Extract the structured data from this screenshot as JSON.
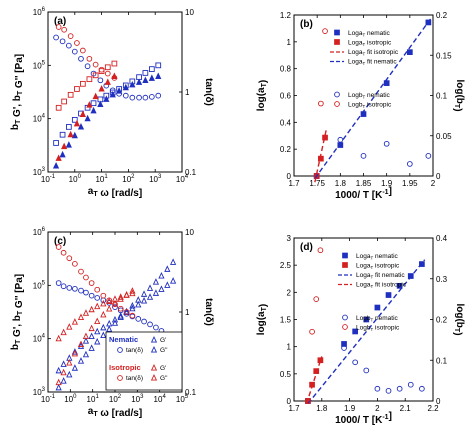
{
  "colors": {
    "blue": "#1f2fbf",
    "red": "#d42020",
    "axis": "#000000"
  },
  "chart_data": [
    {
      "id": "a",
      "type": "scatter",
      "panel_label": "(a)",
      "xlabel": "a_T ω [rad/s]",
      "ylabel": "b_T G', b_T G'' [Pa]",
      "y2label": "tan(δ)",
      "x_scale": "log",
      "y_scale": "log",
      "y2_scale": "log",
      "xlim": [
        0.1,
        10000
      ],
      "ylim": [
        1000,
        1000000
      ],
      "y2lim": [
        0.1,
        10
      ],
      "x_ticks": [
        "10-1",
        "100",
        "101",
        "102",
        "103",
        "104"
      ],
      "y_ticks": [
        "103",
        "104",
        "105",
        "106"
      ],
      "y2_ticks": [
        "0.1",
        "1",
        "10"
      ],
      "series": [
        {
          "color": "blue",
          "marker": "square-open",
          "axis": "y",
          "x": [
            0.2,
            0.35,
            0.6,
            1,
            1.7,
            3,
            5,
            9,
            15,
            26,
            45,
            80,
            140,
            250,
            430,
            750,
            1300
          ],
          "y": [
            3500,
            5000,
            7000,
            9500,
            12500,
            16000,
            19500,
            23000,
            27000,
            31000,
            36000,
            42000,
            50000,
            60000,
            72000,
            85000,
            100000
          ]
        },
        {
          "color": "blue",
          "marker": "triangle-filled",
          "axis": "y",
          "x": [
            0.2,
            0.35,
            0.6,
            1,
            1.7,
            3,
            5,
            9,
            15,
            26,
            45,
            80,
            140,
            250,
            430,
            750,
            1300
          ],
          "y": [
            1300,
            2100,
            3200,
            4800,
            7000,
            10000,
            14000,
            18500,
            23000,
            28000,
            33000,
            38000,
            43000,
            48000,
            52000,
            57000,
            62000
          ]
        },
        {
          "color": "blue",
          "marker": "circle-open",
          "axis": "y2",
          "x": [
            0.2,
            0.35,
            0.6,
            1,
            1.7,
            3,
            5,
            9,
            15,
            26,
            45,
            80,
            140,
            250,
            430,
            750,
            1300
          ],
          "y": [
            4.8,
            4.3,
            3.8,
            3.2,
            2.6,
            2.1,
            1.7,
            1.4,
            1.2,
            1.05,
            0.95,
            0.9,
            0.85,
            0.85,
            0.85,
            0.87,
            0.9
          ]
        },
        {
          "color": "red",
          "marker": "square-open",
          "axis": "y",
          "x": [
            0.25,
            0.4,
            0.7,
            1.2,
            2,
            3.5,
            6,
            10,
            17,
            30
          ],
          "y": [
            16000,
            21000,
            28000,
            36000,
            45000,
            55000,
            65000,
            78000,
            92000,
            108000
          ]
        },
        {
          "color": "red",
          "marker": "triangle-filled",
          "axis": "y",
          "x": [
            0.25,
            0.4,
            0.7,
            1.2,
            2,
            3.5,
            6,
            10,
            17,
            30
          ],
          "y": [
            1800,
            3000,
            5000,
            8000,
            12000,
            18000,
            26000,
            36000,
            48000,
            62000
          ]
        },
        {
          "color": "red",
          "marker": "circle-open",
          "axis": "y2",
          "x": [
            0.25,
            0.4,
            0.7,
            1.2,
            2,
            3.5,
            6,
            10,
            17,
            30
          ],
          "y": [
            6.5,
            6,
            5,
            4.1,
            3.3,
            2.6,
            2.2,
            1.9,
            1.7,
            1.5
          ]
        }
      ]
    },
    {
      "id": "b",
      "type": "scatter",
      "panel_label": "(b)",
      "xlabel": "1000/ T [K-1]",
      "ylabel": "log(a_T)",
      "y2label": "log(b_T)",
      "xlim": [
        1.7,
        2.0
      ],
      "ylim": [
        0,
        1.3
      ],
      "y2lim": [
        0,
        0.2
      ],
      "x_ticks": [
        "1.7",
        "1.75",
        "1.8",
        "1.85",
        "1.9",
        "1.95",
        "2"
      ],
      "y_ticks": [
        "0",
        "0.2",
        "0.4",
        "0.6",
        "0.8",
        "1",
        "1.2"
      ],
      "y2_ticks": [
        "0",
        "0.05",
        "0.1",
        "0.15",
        "0.2"
      ],
      "legend": [
        "Log a_T nematic",
        "Log a_T isotropic",
        "Log a_T fit isotropic",
        "Log a_T fit nematic",
        "Log b_T nematic",
        "Log b_T isotropic"
      ],
      "series": [
        {
          "name": "Log a_T nematic",
          "color": "blue",
          "marker": "square-filled",
          "axis": "y",
          "x": [
            1.749,
            1.8,
            1.85,
            1.9,
            1.95,
            1.99
          ],
          "y": [
            0.0,
            0.25,
            0.5,
            0.75,
            1.0,
            1.24
          ]
        },
        {
          "name": "Log a_T isotropic",
          "color": "red",
          "marker": "square-filled",
          "axis": "y",
          "x": [
            1.749,
            1.758,
            1.767
          ],
          "y": [
            0.0,
            0.14,
            0.31
          ]
        },
        {
          "name": "Log a_T fit isotropic",
          "color": "red",
          "marker": "dash-line",
          "axis": "y",
          "x": [
            1.745,
            1.77
          ],
          "y": [
            -0.05,
            0.38
          ]
        },
        {
          "name": "Log a_T fit nematic",
          "color": "blue",
          "marker": "dash-line",
          "axis": "y",
          "x": [
            1.745,
            1.995
          ],
          "y": [
            -0.02,
            1.27
          ]
        },
        {
          "name": "Log b_T nematic",
          "color": "blue",
          "marker": "circle-open",
          "axis": "y2",
          "x": [
            1.749,
            1.8,
            1.85,
            1.9,
            1.95,
            1.99
          ],
          "y": [
            0.0,
            0.045,
            0.025,
            0.04,
            0.015,
            0.025
          ]
        },
        {
          "name": "Log b_T isotropic",
          "color": "red",
          "marker": "circle-open",
          "axis": "y2",
          "x": [
            1.749,
            1.758,
            1.767
          ],
          "y": [
            0.0,
            0.09,
            0.18
          ]
        }
      ]
    },
    {
      "id": "c",
      "type": "scatter",
      "panel_label": "(c)",
      "xlabel": "a_T ω [rad/s]",
      "ylabel": "b_T G', b_T G'' [Pa]",
      "y2label": "tan(δ)",
      "x_scale": "log",
      "y_scale": "log",
      "y2_scale": "log",
      "xlim": [
        0.1,
        100000
      ],
      "ylim": [
        1000,
        1000000
      ],
      "y2lim": [
        0.1,
        10
      ],
      "x_ticks": [
        "10-1",
        "100",
        "101",
        "102",
        "103",
        "104",
        "105"
      ],
      "y_ticks": [
        "103",
        "104",
        "105",
        "106"
      ],
      "y2_ticks": [
        "0.1",
        "1",
        "10"
      ],
      "legend_groups": [
        {
          "title": "Nematic",
          "color": "blue",
          "items": [
            "tan(δ)",
            "G'",
            "G''"
          ]
        },
        {
          "title": "Isotropic",
          "color": "red",
          "items": [
            "tan(δ)",
            "G'",
            "G''"
          ]
        }
      ],
      "series": [
        {
          "name": "Nematic G'",
          "color": "blue",
          "marker": "triangle-open",
          "axis": "y",
          "x": [
            0.3,
            0.5,
            0.9,
            1.6,
            3,
            5,
            9,
            16,
            30,
            55,
            100,
            180,
            330,
            600,
            1100,
            2000,
            3700,
            6800,
            12000,
            22000,
            40000
          ],
          "y": [
            1200,
            1600,
            2100,
            2800,
            3800,
            5000,
            6600,
            8700,
            11500,
            15000,
            19500,
            25000,
            32000,
            41000,
            53000,
            68000,
            88000,
            115000,
            150000,
            200000,
            270000
          ]
        },
        {
          "name": "Nematic G''",
          "color": "blue",
          "marker": "triangle-open",
          "axis": "y",
          "x": [
            0.3,
            0.5,
            0.9,
            1.6,
            3,
            5,
            9,
            16,
            30,
            55,
            100,
            180,
            330,
            600,
            1100,
            2000,
            3700,
            6800,
            12000,
            22000,
            40000
          ],
          "y": [
            2500,
            3300,
            4300,
            5600,
            7200,
            9000,
            11000,
            13500,
            16000,
            19000,
            22500,
            26500,
            31000,
            36500,
            43000,
            51000,
            60000,
            71000,
            84000,
            100000,
            120000
          ]
        },
        {
          "name": "Nematic tan(δ)",
          "color": "blue",
          "marker": "circle-open",
          "axis": "y2",
          "x": [
            0.3,
            0.5,
            0.9,
            1.6,
            3,
            5,
            9,
            16,
            30,
            55,
            100,
            180,
            330,
            600,
            1100,
            2000,
            3700,
            6800,
            12000,
            22000,
            40000
          ],
          "y": [
            2.3,
            2.1,
            2.0,
            1.95,
            1.85,
            1.75,
            1.6,
            1.5,
            1.4,
            1.3,
            1.15,
            1.05,
            0.95,
            0.88,
            0.82,
            0.76,
            0.7,
            0.64,
            0.58,
            0.52,
            0.45
          ]
        },
        {
          "name": "Isotropic G'",
          "color": "red",
          "marker": "triangle-open",
          "axis": "y",
          "x": [
            0.3,
            0.5,
            0.9,
            1.6,
            3,
            5,
            9,
            16,
            30,
            55,
            100,
            180,
            330,
            600
          ],
          "y": [
            1500,
            2300,
            3500,
            5200,
            7800,
            11000,
            15500,
            21000,
            28000,
            36000,
            45000,
            55000,
            66000,
            78000
          ]
        },
        {
          "name": "Isotropic G''",
          "color": "red",
          "marker": "triangle-open",
          "axis": "y",
          "x": [
            0.3,
            0.5,
            0.9,
            1.6,
            3,
            5,
            9,
            16,
            30,
            55,
            100,
            180,
            330,
            600
          ],
          "y": [
            10000,
            13000,
            16500,
            20500,
            25000,
            30000,
            35000,
            40000,
            45000,
            50000,
            55000,
            60000,
            65000,
            70000
          ]
        },
        {
          "name": "Isotropic tan(δ)",
          "color": "red",
          "marker": "circle-open",
          "axis": "y2",
          "x": [
            0.3,
            0.5,
            0.9,
            1.6,
            3,
            5,
            9,
            16,
            30,
            55,
            100,
            180,
            330,
            600
          ],
          "y": [
            6.5,
            5.5,
            4.7,
            4.0,
            3.2,
            2.7,
            2.3,
            1.9,
            1.6,
            1.4,
            1.25,
            1.1,
            1.0,
            0.9
          ]
        }
      ]
    },
    {
      "id": "d",
      "type": "scatter",
      "panel_label": "(d)",
      "xlabel": "1000/ T [K-1]",
      "ylabel": "log(a_T)",
      "y2label": "log(b_T)",
      "xlim": [
        1.7,
        2.2
      ],
      "ylim": [
        0,
        3
      ],
      "y2lim": [
        0,
        0.4
      ],
      "x_ticks": [
        "1.7",
        "1.8",
        "1.9",
        "2",
        "2.1",
        "2.2"
      ],
      "y_ticks": [
        "0",
        "0.5",
        "1",
        "1.5",
        "2",
        "2.5",
        "3"
      ],
      "y2_ticks": [
        "0",
        "0.1",
        "0.2",
        "0.3",
        "0.4"
      ],
      "legend": [
        "Log a_T nematic",
        "Log a_T isotropic",
        "Log a_T fit nematic",
        "Log a_T fit isotropic",
        "Log b_T nematic",
        "Log b_T isotropic"
      ],
      "series": [
        {
          "name": "Log a_T nematic",
          "color": "blue",
          "marker": "square-filled",
          "axis": "y",
          "x": [
            1.75,
            1.88,
            1.92,
            1.96,
            2.0,
            2.04,
            2.08,
            2.12,
            2.16
          ],
          "y": [
            0.0,
            1.05,
            1.28,
            1.5,
            1.72,
            1.95,
            2.12,
            2.3,
            2.52
          ]
        },
        {
          "name": "Log a_T isotropic",
          "color": "red",
          "marker": "square-filled",
          "axis": "y",
          "x": [
            1.75,
            1.765,
            1.78,
            1.795
          ],
          "y": [
            0.0,
            0.3,
            0.55,
            0.75
          ]
        },
        {
          "name": "Log a_T fit nematic",
          "color": "blue",
          "marker": "dash-line",
          "axis": "y",
          "x": [
            1.75,
            2.17
          ],
          "y": [
            -0.05,
            2.6
          ]
        },
        {
          "name": "Log a_T fit isotropic",
          "color": "red",
          "marker": "dash-line",
          "axis": "y",
          "x": [
            1.745,
            1.8
          ],
          "y": [
            -0.05,
            0.82
          ]
        },
        {
          "name": "Log b_T nematic",
          "color": "blue",
          "marker": "circle-open",
          "axis": "y2",
          "x": [
            1.88,
            1.92,
            1.96,
            2.0,
            2.04,
            2.08,
            2.12,
            2.16
          ],
          "y": [
            0.13,
            0.095,
            0.075,
            0.03,
            0.025,
            0.03,
            0.04,
            0.03
          ]
        },
        {
          "name": "Log b_T isotropic",
          "color": "red",
          "marker": "circle-open",
          "axis": "y2",
          "x": [
            1.75,
            1.765,
            1.78,
            1.795
          ],
          "y": [
            0.0,
            0.17,
            0.25,
            0.37
          ]
        }
      ]
    }
  ]
}
